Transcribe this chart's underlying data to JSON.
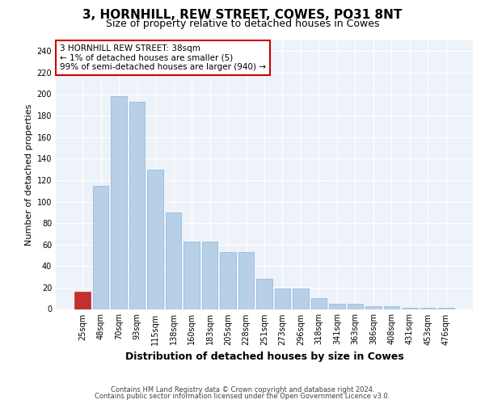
{
  "title": "3, HORNHILL, REW STREET, COWES, PO31 8NT",
  "subtitle": "Size of property relative to detached houses in Cowes",
  "xlabel": "Distribution of detached houses by size in Cowes",
  "ylabel": "Number of detached properties",
  "bar_color": "#b8cfe8",
  "bar_edgecolor": "#8ab4d8",
  "highlight_bar_color": "#c03030",
  "highlight_bar_edgecolor": "#c03030",
  "categories": [
    "25sqm",
    "48sqm",
    "70sqm",
    "93sqm",
    "115sqm",
    "138sqm",
    "160sqm",
    "183sqm",
    "205sqm",
    "228sqm",
    "251sqm",
    "273sqm",
    "296sqm",
    "318sqm",
    "341sqm",
    "363sqm",
    "386sqm",
    "408sqm",
    "431sqm",
    "453sqm",
    "476sqm"
  ],
  "values": [
    16,
    115,
    198,
    193,
    130,
    90,
    63,
    63,
    53,
    53,
    28,
    19,
    19,
    10,
    5,
    5,
    3,
    3,
    1,
    1,
    1
  ],
  "highlight_index": 0,
  "ylim": [
    0,
    250
  ],
  "yticks": [
    0,
    20,
    40,
    60,
    80,
    100,
    120,
    140,
    160,
    180,
    200,
    220,
    240
  ],
  "annotation_text": "3 HORNHILL REW STREET: 38sqm\n← 1% of detached houses are smaller (5)\n99% of semi-detached houses are larger (940) →",
  "annotation_box_facecolor": "#ffffff",
  "annotation_box_edgecolor": "#cc0000",
  "footer_line1": "Contains HM Land Registry data © Crown copyright and database right 2024.",
  "footer_line2": "Contains public sector information licensed under the Open Government Licence v3.0.",
  "background_color": "#eef2f9",
  "grid_color": "#ffffff",
  "fig_background": "#ffffff",
  "title_fontsize": 11,
  "subtitle_fontsize": 9,
  "ylabel_fontsize": 8,
  "xlabel_fontsize": 9,
  "tick_fontsize": 7,
  "annotation_fontsize": 7.5,
  "footer_fontsize": 6
}
